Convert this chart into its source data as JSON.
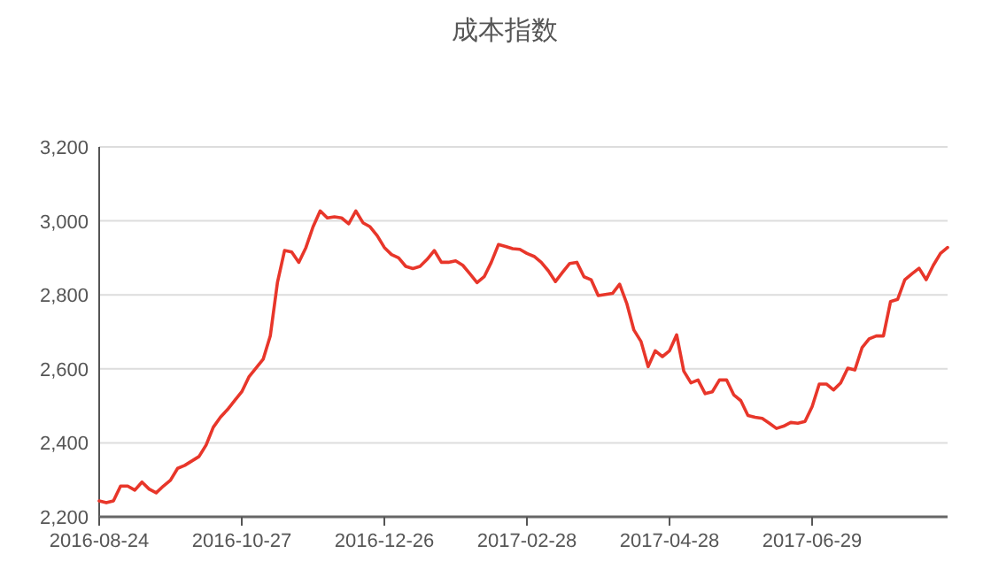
{
  "chart_data": {
    "type": "line",
    "title": "成本指数",
    "categories": [
      "2016-08-24",
      null,
      null,
      null,
      null,
      null,
      null,
      null,
      null,
      null,
      null,
      null,
      null,
      null,
      null,
      null,
      null,
      null,
      null,
      null,
      "2016-10-27",
      null,
      null,
      null,
      null,
      null,
      null,
      null,
      null,
      null,
      null,
      null,
      null,
      null,
      null,
      null,
      null,
      null,
      null,
      null,
      "2016-12-26",
      null,
      null,
      null,
      null,
      null,
      null,
      null,
      null,
      null,
      null,
      null,
      null,
      null,
      null,
      null,
      null,
      null,
      null,
      null,
      "2017-02-28",
      null,
      null,
      null,
      null,
      null,
      null,
      null,
      null,
      null,
      null,
      null,
      null,
      null,
      null,
      null,
      null,
      null,
      null,
      null,
      "2017-04-28",
      null,
      null,
      null,
      null,
      null,
      null,
      null,
      null,
      null,
      null,
      null,
      null,
      null,
      null,
      null,
      null,
      null,
      null,
      null,
      "2017-06-29",
      null,
      null,
      null,
      null,
      null,
      null,
      null,
      null,
      null,
      null,
      null,
      null,
      null,
      null,
      null,
      null,
      null,
      null,
      null
    ],
    "series": [
      {
        "color": "#e8362a",
        "values": [
          2243,
          2238,
          2243,
          2283,
          2283,
          2272,
          2294,
          2275,
          2265,
          2283,
          2299,
          2331,
          2339,
          2351,
          2363,
          2394,
          2442,
          2469,
          2490,
          2514,
          2538,
          2578,
          2602,
          2626,
          2689,
          2833,
          2920,
          2916,
          2888,
          2928,
          2984,
          3027,
          3008,
          3011,
          3008,
          2992,
          3027,
          2995,
          2984,
          2960,
          2928,
          2909,
          2900,
          2877,
          2871,
          2877,
          2896,
          2920,
          2888,
          2888,
          2892,
          2880,
          2857,
          2833,
          2849,
          2888,
          2936,
          2931,
          2925,
          2923,
          2912,
          2904,
          2888,
          2865,
          2836,
          2861,
          2885,
          2888,
          2849,
          2841,
          2798,
          2801,
          2804,
          2829,
          2777,
          2705,
          2674,
          2606,
          2649,
          2633,
          2649,
          2692,
          2594,
          2562,
          2570,
          2533,
          2538,
          2570,
          2570,
          2530,
          2514,
          2474,
          2469,
          2466,
          2453,
          2439,
          2445,
          2455,
          2453,
          2458,
          2498,
          2559,
          2559,
          2543,
          2562,
          2602,
          2597,
          2657,
          2681,
          2689,
          2689,
          2782,
          2788,
          2841,
          2857,
          2872,
          2841,
          2880,
          2912,
          2928
        ]
      }
    ],
    "ylim": [
      2200,
      3200
    ],
    "yticks": [
      {
        "value": 2200,
        "label": "2,200"
      },
      {
        "value": 2400,
        "label": "2,400"
      },
      {
        "value": 2600,
        "label": "2,600"
      },
      {
        "value": 2800,
        "label": "2,800"
      },
      {
        "value": 3000,
        "label": "3,000"
      },
      {
        "value": 3200,
        "label": "3,200"
      }
    ],
    "grid": "y",
    "marker": "none",
    "line_style": "solid"
  }
}
